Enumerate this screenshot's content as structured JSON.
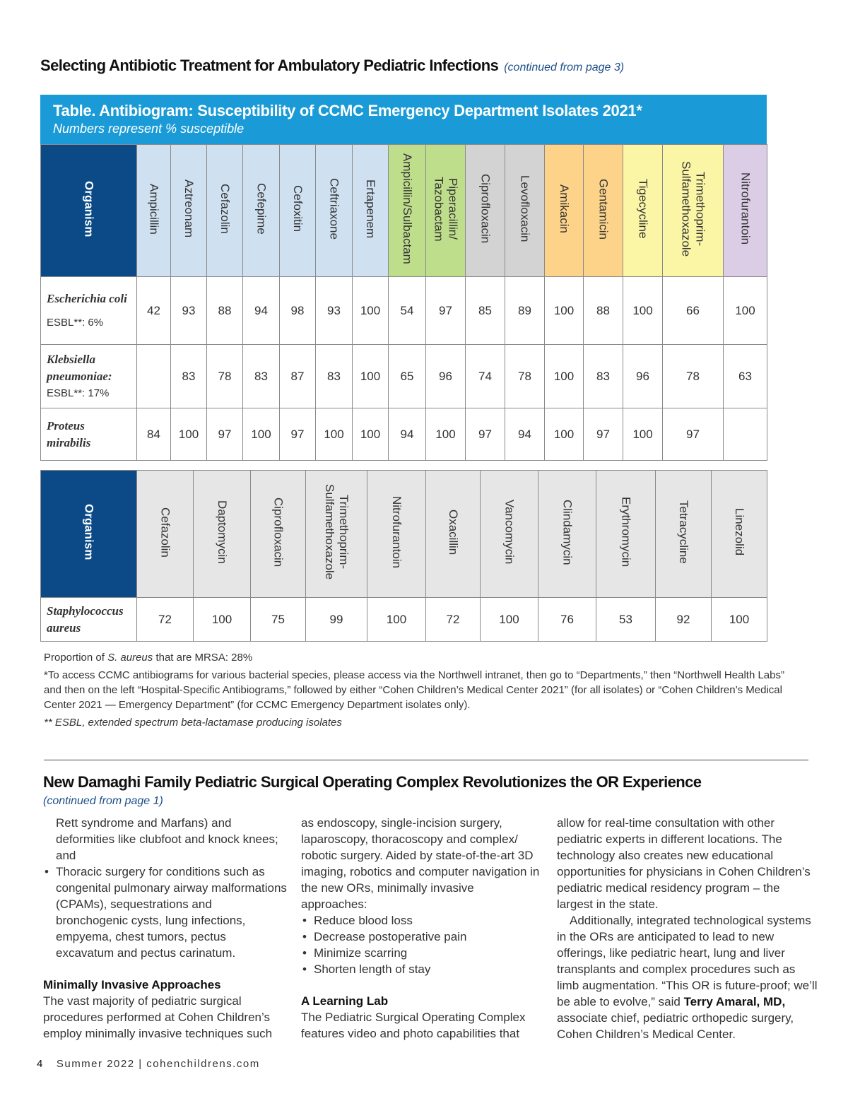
{
  "header": {
    "title": "Selecting Antibiotic Treatment for Ambulatory Pediatric Infections",
    "continued": "(continued from page 3)"
  },
  "table": {
    "title": "Table. Antibiogram: Susceptibility of CCMC Emergency Department Isolates 2021*",
    "subtitle": "Numbers represent % susceptible"
  },
  "gram_negative": {
    "organism_header": "Organism",
    "columns": [
      {
        "label": "Ampicillin",
        "color": "#cfe0f1"
      },
      {
        "label": "Aztreonam",
        "color": "#cfe0f1"
      },
      {
        "label": "Cefazolin",
        "color": "#cfe0f1"
      },
      {
        "label": "Cefepime",
        "color": "#cfe0f1"
      },
      {
        "label": "Cefoxitin",
        "color": "#cfe0f1"
      },
      {
        "label": "Ceftriaxone",
        "color": "#cfe0f1"
      },
      {
        "label": "Ertapenem",
        "color": "#cfe0f1"
      },
      {
        "label": "Ampicillin/Sulbactam",
        "color": "#bfde8c"
      },
      {
        "label": "Piperacillin/ Tazobactam",
        "color": "#bfde8c"
      },
      {
        "label": "Ciprofloxacin",
        "color": "#d3d3d3"
      },
      {
        "label": "Levofloxacin",
        "color": "#d3d3d3"
      },
      {
        "label": "Amikacin",
        "color": "#fdd38a"
      },
      {
        "label": "Gentamicin",
        "color": "#fdd38a"
      },
      {
        "label": "Tigecycline",
        "color": "#fbf6a6"
      },
      {
        "label": "Trimethoprim- Sulfamethoxazole",
        "color": "#fbf6a6"
      },
      {
        "label": "Nitrofurantoin",
        "color": "#dccde6"
      }
    ],
    "rows": [
      {
        "organism": "Escherichia coli",
        "note": "ESBL**: 6%",
        "values": [
          "42",
          "93",
          "88",
          "94",
          "98",
          "93",
          "100",
          "54",
          "97",
          "85",
          "89",
          "100",
          "88",
          "100",
          "66",
          "100"
        ]
      },
      {
        "organism": "Klebsiella pneumoniae:",
        "note": "ESBL**: 17%",
        "values": [
          "",
          "83",
          "78",
          "83",
          "87",
          "83",
          "100",
          "65",
          "96",
          "74",
          "78",
          "100",
          "83",
          "96",
          "78",
          "63"
        ]
      },
      {
        "organism": "Proteus mirabilis",
        "note": "",
        "values": [
          "84",
          "100",
          "97",
          "100",
          "97",
          "100",
          "100",
          "94",
          "100",
          "97",
          "94",
          "100",
          "97",
          "100",
          "97",
          ""
        ]
      }
    ]
  },
  "gram_positive": {
    "organism_header": "Organism",
    "columns": [
      "Cefazolin",
      "Daptomycin",
      "Ciprofloxacin",
      "Trimethoprim- Sulfamethoxazole",
      "Nitrofurantoin",
      "Oxacillin",
      "Vancomycin",
      "Clindamycin",
      "Erythromycin",
      "Tetracycline",
      "Linezolid"
    ],
    "rows": [
      {
        "organism": "Staphylococcus aureus",
        "values": [
          "72",
          "100",
          "75",
          "99",
          "100",
          "72",
          "100",
          "76",
          "53",
          "92",
          "100"
        ]
      }
    ]
  },
  "notes": {
    "mrsa_prefix": "Proportion of ",
    "mrsa_species": "S. aureus",
    "mrsa_suffix": " that are MRSA: 28%",
    "access": "*To access CCMC antibiograms for various bacterial species, please access via the Northwell intranet, then go to “Departments,” then “Northwell Health Labs” and then on the left “Hospital-Specific Antibiograms,” followed by either “Cohen Children’s Medical Center 2021” (for all isolates) or “Cohen Children’s Medical Center 2021 — Emergency Department” (for CCMC Emergency Department isolates only).",
    "esbl": "** ESBL, extended spectrum beta-lactamase producing isolates"
  },
  "article": {
    "title": "New Damaghi Family Pediatric Surgical Operating Complex Revolutionizes the OR Experience",
    "continued": "(continued from page 1)",
    "col1_lead": "Rett syndrome and Marfans) and deformities like clubfoot and knock knees; and",
    "col1_bullet": "Thoracic surgery for conditions such as congenital pulmonary airway malformations (CPAMs), sequestrations and bronchogenic cysts, lung infections, empyema, chest tumors, pectus excavatum and pectus carinatum.",
    "sub1": "Minimally Invasive Approaches",
    "col1_para": "The vast majority of pediatric surgical procedures performed at Cohen Children’s employ minimally invasive techniques such",
    "col2_para": "as endoscopy, single-incision surgery, laparoscopy, thoracoscopy and complex/ robotic surgery. Aided by state-of-the-art 3D imaging, robotics and computer navigation in the new ORs, minimally invasive approaches:",
    "col2_bullets": [
      "Reduce blood loss",
      "Decrease postoperative pain",
      "Minimize scarring",
      "Shorten length of stay"
    ],
    "sub2": "A Learning Lab",
    "col2_para2": "The Pediatric Surgical Operating Complex features video and photo capabilities that",
    "col3_para1": "allow for real-time consultation with other pediatric experts in different locations. The technology also creates new educational opportunities for physicians in Cohen Children’s pediatric medical residency program – the largest in the state.",
    "col3_para2a": "Additionally, integrated technological systems in the ORs are anticipated to lead to new offerings, like pediatric heart, lung and liver transplants and complex procedures such as limb augmentation. “This OR is future-proof; we’ll be able to evolve,” said ",
    "col3_name": "Terry Amaral, MD,",
    "col3_para2b": " associate chief, pediatric orthopedic surgery, Cohen Children’s Medical Center."
  },
  "footer": {
    "page": "4",
    "issue": "Summer 2022 | cohenchildrens.com"
  }
}
